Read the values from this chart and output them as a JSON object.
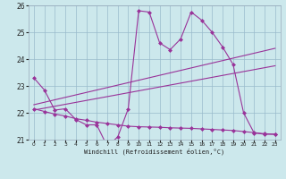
{
  "title": "",
  "xlabel": "Windchill (Refroidissement éolien,°C)",
  "ylabel": "",
  "background_color": "#cce8ec",
  "line_color": "#993399",
  "grid_color": "#99bbcc",
  "xlim": [
    -0.5,
    23.5
  ],
  "ylim": [
    21.0,
    26.0
  ],
  "xticks": [
    0,
    1,
    2,
    3,
    4,
    5,
    6,
    7,
    8,
    9,
    10,
    11,
    12,
    13,
    14,
    15,
    16,
    17,
    18,
    19,
    20,
    21,
    22,
    23
  ],
  "yticks": [
    21,
    22,
    23,
    24,
    25,
    26
  ],
  "figsize": [
    3.2,
    2.0
  ],
  "dpi": 100,
  "series": [
    {
      "x": [
        0,
        1,
        2,
        3,
        4,
        5,
        6,
        7,
        8,
        9,
        10,
        11,
        12,
        13,
        14,
        15,
        16,
        17,
        18,
        19,
        20,
        21,
        22,
        23
      ],
      "y": [
        23.3,
        22.85,
        22.1,
        22.15,
        21.75,
        21.55,
        21.55,
        20.75,
        21.1,
        22.15,
        25.8,
        25.75,
        24.6,
        24.35,
        24.75,
        25.75,
        25.45,
        25.0,
        24.45,
        23.8,
        22.0,
        21.25,
        21.2,
        21.2
      ],
      "marker": "D",
      "markersize": 2.0,
      "linewidth": 0.8
    },
    {
      "x": [
        0,
        1,
        2,
        3,
        4,
        5,
        6,
        7,
        8,
        9,
        10,
        11,
        12,
        13,
        14,
        15,
        16,
        17,
        18,
        19,
        20,
        21,
        22,
        23
      ],
      "y": [
        22.15,
        22.05,
        21.95,
        21.88,
        21.78,
        21.72,
        21.65,
        21.6,
        21.55,
        21.5,
        21.48,
        21.47,
        21.46,
        21.44,
        21.43,
        21.42,
        21.4,
        21.38,
        21.36,
        21.34,
        21.3,
        21.26,
        21.22,
        21.2
      ],
      "marker": "D",
      "markersize": 2.0,
      "linewidth": 0.8
    },
    {
      "x": [
        0,
        23
      ],
      "y": [
        22.3,
        24.4
      ],
      "marker": null,
      "markersize": 0,
      "linewidth": 0.8
    },
    {
      "x": [
        0,
        23
      ],
      "y": [
        22.1,
        23.75
      ],
      "marker": null,
      "markersize": 0,
      "linewidth": 0.8
    }
  ]
}
